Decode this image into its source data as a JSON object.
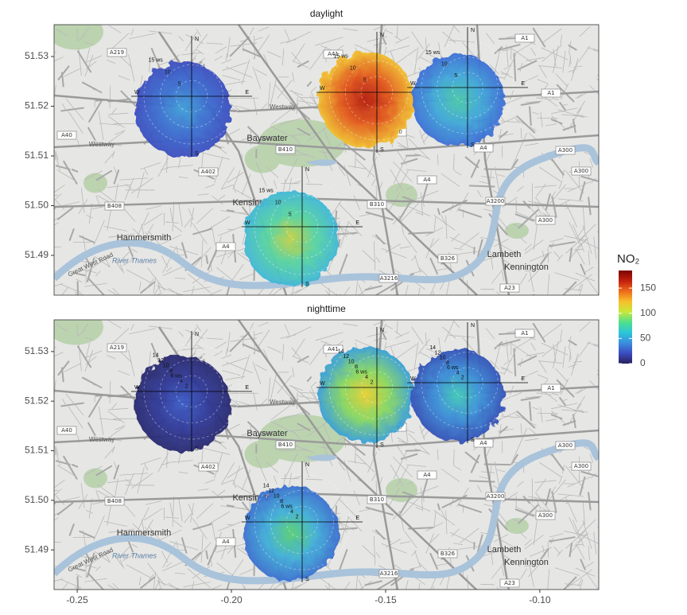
{
  "chart_data": {
    "type": "map",
    "facets": [
      {
        "title": "daylight",
        "ring_labels": [
          "5",
          "10",
          "15 ws"
        ]
      },
      {
        "title": "nighttime",
        "ring_labels": [
          "2",
          "4",
          "6 ws",
          "8",
          "10",
          "12",
          "14"
        ]
      }
    ],
    "xlim": [
      -0.2575,
      -0.0809
    ],
    "xticks": [
      -0.25,
      {
        "value": -0.2,
        "label": "-0.20"
      },
      -0.15,
      {
        "value": -0.1,
        "label": "-0.10"
      }
    ],
    "ylim": [
      51.482,
      51.5364
    ],
    "yticks": [
      51.49,
      {
        "value": 51.5,
        "label": "51.50"
      },
      51.51,
      51.52,
      51.53
    ],
    "compass": [
      "N",
      "E",
      "S",
      "W"
    ],
    "legend": {
      "title": "NO₂",
      "lim": [
        0,
        185
      ],
      "ticks": [
        0,
        50,
        100,
        150
      ],
      "colors": [
        "#2a1f5c",
        "#3b4cc0",
        "#3a8fe0",
        "#2cc6d8",
        "#4fe08c",
        "#c8e83a",
        "#f6c02a",
        "#ee6a1a",
        "#c3200e",
        "#7a0403"
      ]
    },
    "road_labels": [
      "A219",
      "A41",
      "A1",
      "A40",
      "B410",
      "A402",
      "A4",
      "A3200",
      "A300",
      "A1",
      "A4",
      "A40",
      "B310",
      "B408",
      "A4",
      "B326",
      "A3216",
      "A23",
      "A300",
      "A300"
    ],
    "place_labels": [
      "Bayswater",
      "Kensington",
      "Hammersmith",
      "Lambeth",
      "Kennington",
      "River Thames",
      "Westway",
      "Westway",
      "Great West Road"
    ]
  }
}
